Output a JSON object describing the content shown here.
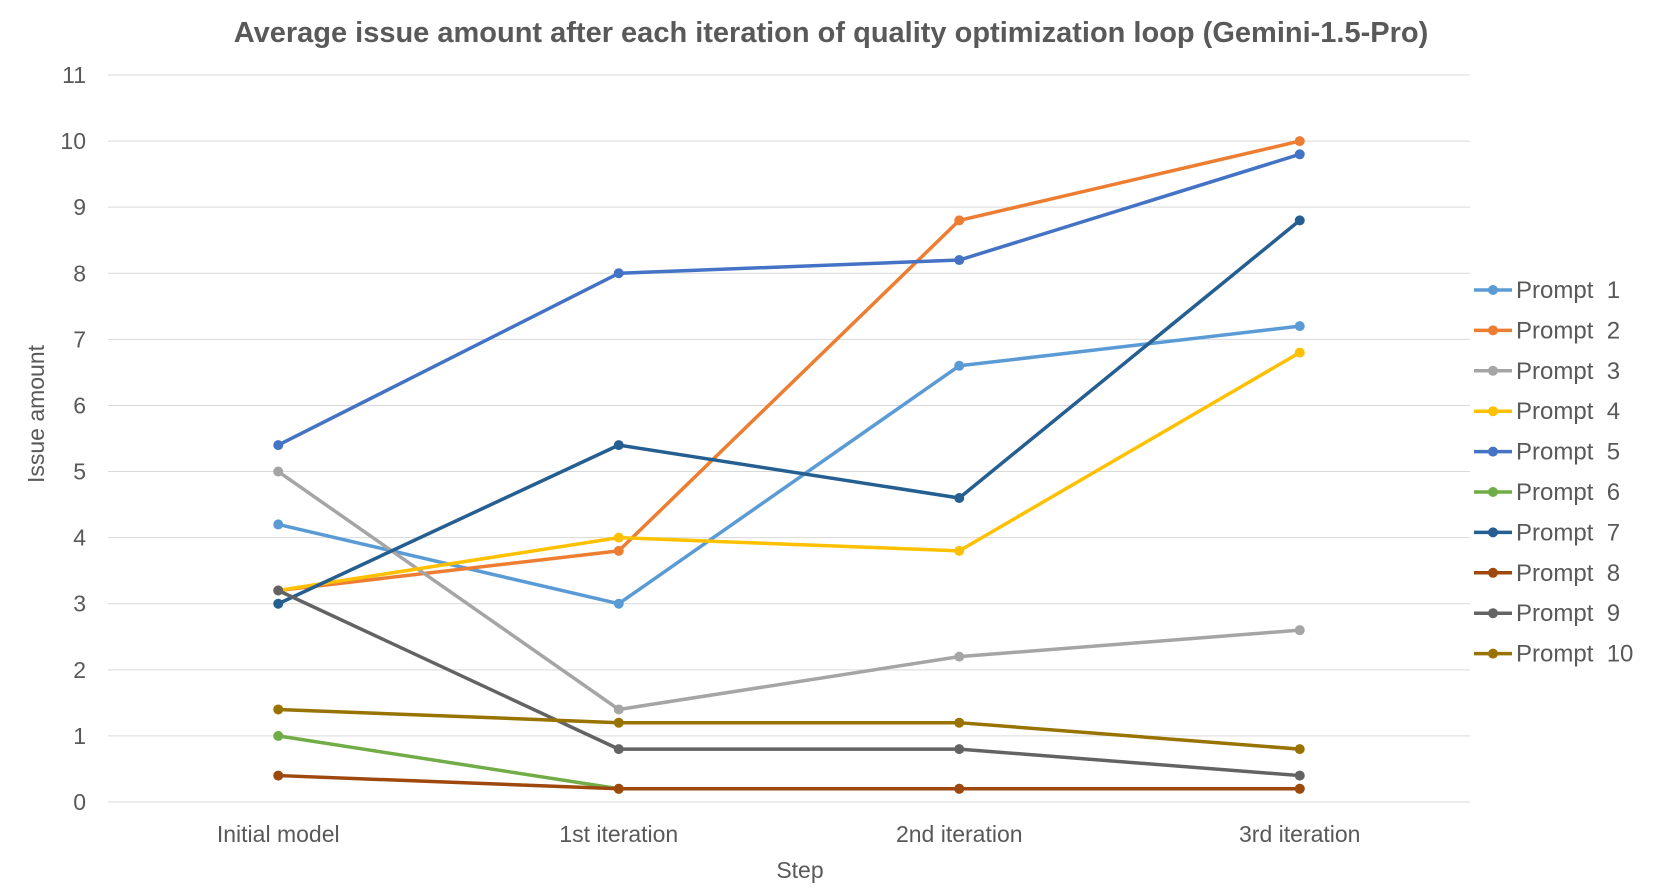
{
  "chart_data": {
    "type": "line",
    "title": "Average issue amount after each iteration of quality optimization loop (Gemini-1.5-Pro)",
    "xlabel": "Step",
    "ylabel": "Issue  amount",
    "categories": [
      "Initial model",
      "1st iteration",
      "2nd iteration",
      "3rd iteration"
    ],
    "ylim": [
      0,
      11
    ],
    "yticks": [
      "0",
      "1",
      "2",
      "3",
      "4",
      "5",
      "6",
      "7",
      "8",
      "9",
      "10",
      "11"
    ],
    "grid": true,
    "legend_position": "right",
    "series": [
      {
        "name": "Prompt  1",
        "color": "#5B9BD5",
        "values": [
          4.2,
          3.0,
          6.6,
          7.2
        ]
      },
      {
        "name": "Prompt  2",
        "color": "#ED7D31",
        "values": [
          3.2,
          3.8,
          8.8,
          10.0
        ]
      },
      {
        "name": "Prompt  3",
        "color": "#A5A5A5",
        "values": [
          5.0,
          1.4,
          2.2,
          2.6
        ]
      },
      {
        "name": "Prompt  4",
        "color": "#FFC000",
        "values": [
          3.2,
          4.0,
          3.8,
          6.8
        ]
      },
      {
        "name": "Prompt  5",
        "color": "#4472C4",
        "values": [
          5.4,
          8.0,
          8.2,
          9.8
        ]
      },
      {
        "name": "Prompt  6",
        "color": "#70AD47",
        "values": [
          1.0,
          0.2,
          0.2,
          0.2
        ]
      },
      {
        "name": "Prompt  7",
        "color": "#255E91",
        "values": [
          3.0,
          5.4,
          4.6,
          8.8
        ]
      },
      {
        "name": "Prompt  8",
        "color": "#9E480E",
        "values": [
          0.4,
          0.2,
          0.2,
          0.2
        ]
      },
      {
        "name": "Prompt  9",
        "color": "#636363",
        "values": [
          3.2,
          0.8,
          0.8,
          0.4
        ]
      },
      {
        "name": "Prompt  10",
        "color": "#997300",
        "values": [
          1.4,
          1.2,
          1.2,
          0.8
        ]
      }
    ]
  }
}
